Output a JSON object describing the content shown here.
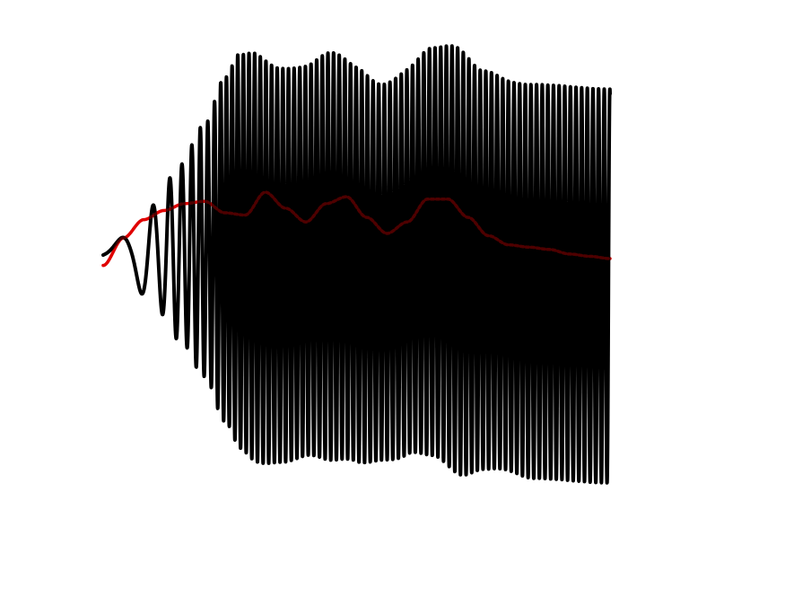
{
  "chart_data": {
    "type": "line",
    "title": "",
    "xlabel": "",
    "ylabel": "",
    "axes_visible": false,
    "grid": false,
    "legend": "none",
    "xlim": [
      0,
      1
    ],
    "ylim": [
      -1,
      1
    ],
    "series": [
      {
        "style": "oscillation",
        "color": "#000000",
        "stroke": "solid",
        "x_start": 0.0,
        "x_end": 1.0,
        "chirp_start_cycles": 1.0,
        "chirp_end_cycles": 62,
        "chirp_ramp_end": 0.24,
        "baseline": {
          "x": [
            0.0,
            0.25,
            0.35,
            0.45,
            0.55,
            0.65,
            0.75,
            0.85,
            1.0
          ],
          "y": [
            0.0,
            0.04,
            -0.03,
            0.01,
            -0.06,
            0.03,
            -0.05,
            -0.1,
            -0.12
          ]
        },
        "amplitude": {
          "x": [
            0.0,
            0.05,
            0.1,
            0.15,
            0.2,
            0.24,
            0.27,
            0.3,
            0.35,
            0.4,
            0.45,
            0.5,
            0.55,
            0.6,
            0.65,
            0.7,
            0.75,
            0.8,
            0.85,
            0.9,
            0.95,
            1.0
          ],
          "y": [
            0.04,
            0.1,
            0.22,
            0.38,
            0.55,
            0.75,
            0.86,
            0.89,
            0.86,
            0.85,
            0.89,
            0.86,
            0.82,
            0.84,
            0.89,
            0.93,
            0.87,
            0.85,
            0.86,
            0.86,
            0.86,
            0.86
          ]
        }
      },
      {
        "style": "smooth",
        "color": "#e00000",
        "stroke": "solid",
        "x": [
          0.0,
          0.04,
          0.08,
          0.12,
          0.16,
          0.2,
          0.24,
          0.28,
          0.32,
          0.36,
          0.4,
          0.44,
          0.48,
          0.52,
          0.56,
          0.6,
          0.64,
          0.68,
          0.72,
          0.76,
          0.8,
          0.84,
          0.88,
          0.92,
          0.96,
          1.0
        ],
        "y": [
          -0.03,
          0.09,
          0.17,
          0.21,
          0.24,
          0.25,
          0.2,
          0.19,
          0.29,
          0.22,
          0.16,
          0.24,
          0.27,
          0.18,
          0.11,
          0.16,
          0.26,
          0.26,
          0.18,
          0.1,
          0.06,
          0.05,
          0.04,
          0.02,
          0.01,
          0.0
        ]
      }
    ]
  }
}
